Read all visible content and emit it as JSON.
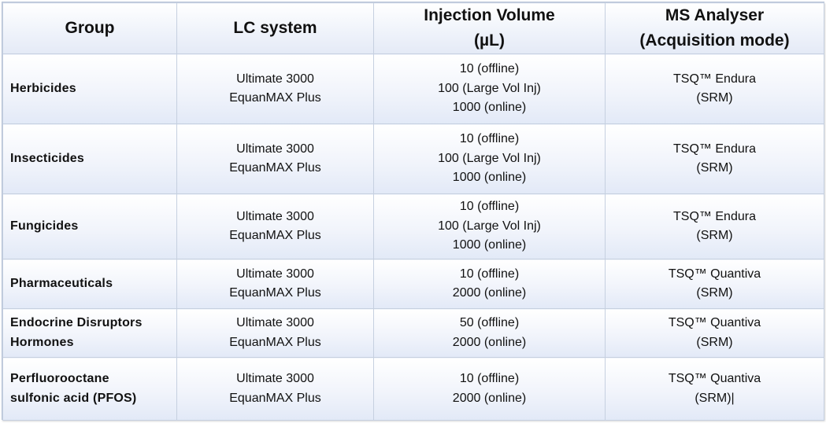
{
  "headers": [
    {
      "lines": [
        "Group"
      ]
    },
    {
      "lines": [
        "LC system"
      ]
    },
    {
      "lines": [
        "Injection Volume",
        "(µL)"
      ]
    },
    {
      "lines": [
        "MS Analyser",
        "(Acquisition mode)"
      ]
    }
  ],
  "rows": [
    {
      "group": [
        "Herbicides"
      ],
      "lc": [
        "Ultimate 3000",
        "EquanMAX Plus"
      ],
      "injection": [
        "10 (offline)",
        "100 (Large Vol Inj)",
        "1000 (online)"
      ],
      "ms": [
        "TSQ™ Endura",
        "(SRM)"
      ]
    },
    {
      "group": [
        "Insecticides"
      ],
      "lc": [
        "Ultimate 3000",
        "EquanMAX Plus"
      ],
      "injection": [
        "10 (offline)",
        "100 (Large Vol Inj)",
        "1000 (online)"
      ],
      "ms": [
        "TSQ™ Endura",
        "(SRM)"
      ]
    },
    {
      "group": [
        "Fungicides"
      ],
      "lc": [
        "Ultimate 3000",
        "EquanMAX Plus"
      ],
      "injection": [
        "10 (offline)",
        "100 (Large Vol Inj)",
        "1000 (online)"
      ],
      "ms": [
        "TSQ™ Endura",
        "(SRM)"
      ]
    },
    {
      "group": [
        "Pharmaceuticals"
      ],
      "lc": [
        "Ultimate 3000",
        "EquanMAX Plus"
      ],
      "injection": [
        "10 (offline)",
        "2000 (online)"
      ],
      "ms": [
        "TSQ™ Quantiva",
        "(SRM)"
      ]
    },
    {
      "group": [
        "Endocrine Disruptors",
        "Hormones"
      ],
      "lc": [
        "Ultimate 3000",
        "EquanMAX Plus"
      ],
      "injection": [
        "50 (offline)",
        "2000 (online)"
      ],
      "ms": [
        "TSQ™ Quantiva",
        "(SRM)"
      ]
    },
    {
      "group": [
        "Perfluorooctane",
        "sulfonic acid (PFOS)"
      ],
      "lc": [
        "Ultimate 3000",
        "EquanMAX Plus"
      ],
      "injection": [
        "10 (offline)",
        "2000 (online)"
      ],
      "ms": [
        "TSQ™ Quantiva",
        "(SRM)|"
      ]
    }
  ]
}
